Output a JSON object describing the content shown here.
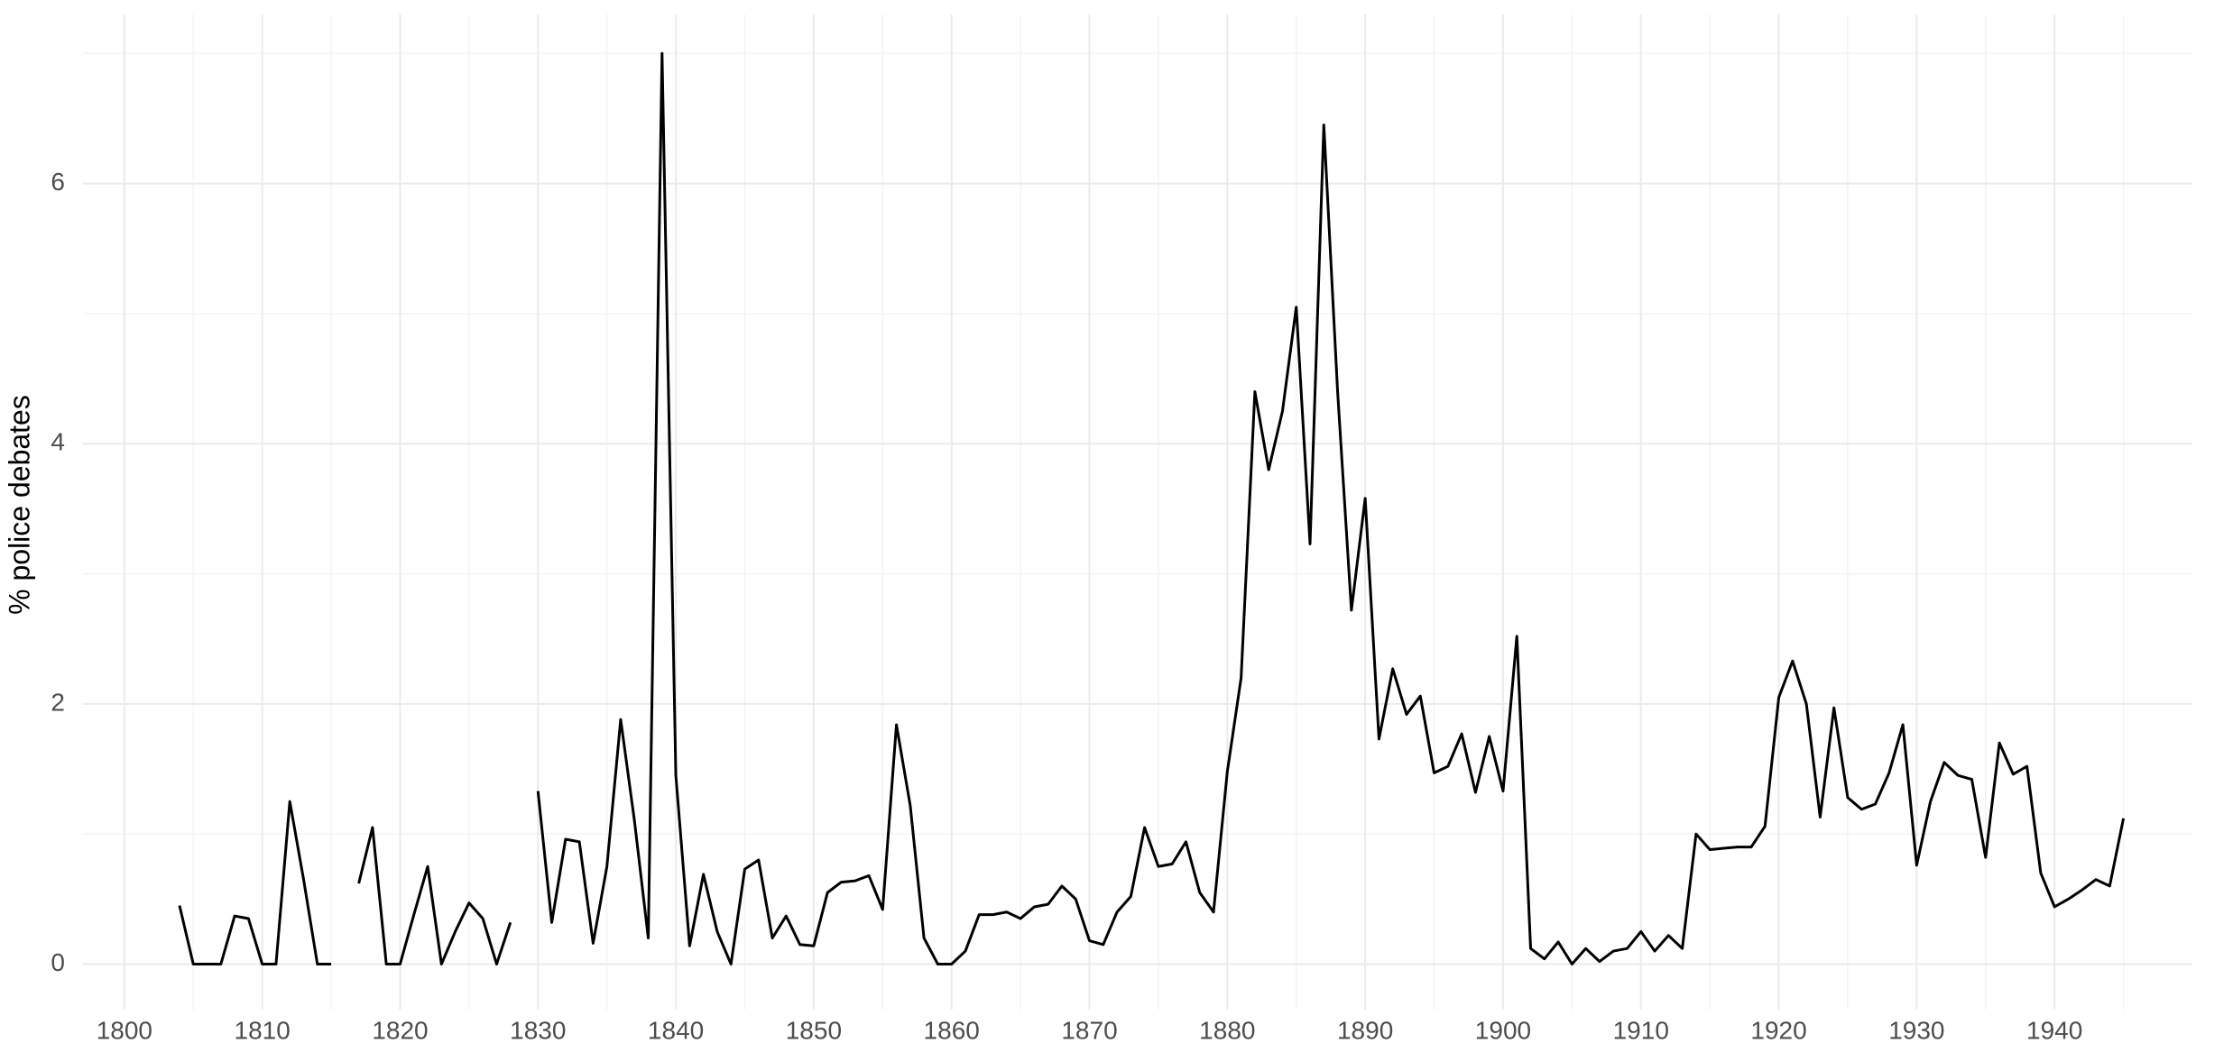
{
  "chart_data": {
    "type": "line",
    "y_label": "% police debates",
    "x": [
      1804,
      1805,
      1806,
      1807,
      1808,
      1809,
      1810,
      1811,
      1812,
      1813,
      1814,
      1815,
      1816,
      1817,
      1818,
      1819,
      1820,
      1821,
      1822,
      1823,
      1824,
      1825,
      1826,
      1827,
      1828,
      1829,
      1830,
      1831,
      1832,
      1833,
      1834,
      1835,
      1836,
      1837,
      1838,
      1839,
      1840,
      1841,
      1842,
      1843,
      1844,
      1845,
      1846,
      1847,
      1848,
      1849,
      1850,
      1851,
      1852,
      1853,
      1854,
      1855,
      1856,
      1857,
      1858,
      1859,
      1860,
      1861,
      1862,
      1863,
      1864,
      1865,
      1866,
      1867,
      1868,
      1869,
      1870,
      1871,
      1872,
      1873,
      1874,
      1875,
      1876,
      1877,
      1878,
      1879,
      1880,
      1881,
      1882,
      1883,
      1884,
      1885,
      1886,
      1887,
      1888,
      1889,
      1890,
      1891,
      1892,
      1893,
      1894,
      1895,
      1896,
      1897,
      1898,
      1899,
      1900,
      1901,
      1902,
      1903,
      1904,
      1905,
      1906,
      1907,
      1908,
      1909,
      1910,
      1911,
      1912,
      1913,
      1914,
      1915,
      1916,
      1917,
      1918,
      1919,
      1920,
      1921,
      1922,
      1923,
      1924,
      1925,
      1926,
      1927,
      1928,
      1929,
      1930,
      1931,
      1932,
      1933,
      1934,
      1935,
      1936,
      1937,
      1938,
      1939,
      1940,
      1941,
      1942,
      1943,
      1944,
      1945
    ],
    "series": [
      {
        "name": "police",
        "color": "#000000",
        "values": [
          0.45,
          0,
          0,
          0,
          0.37,
          0.35,
          0,
          0,
          1.25,
          0.65,
          0,
          0,
          null,
          0.62,
          1.05,
          0,
          0,
          0.38,
          0.75,
          0,
          0.25,
          0.47,
          0.35,
          0,
          0.32,
          null,
          1.33,
          0.32,
          0.96,
          0.94,
          0.16,
          0.75,
          1.88,
          1.1,
          0.2,
          7.0,
          1.45,
          0.14,
          0.69,
          0.25,
          0,
          0.73,
          0.8,
          0.2,
          0.37,
          0.15,
          0.14,
          0.55,
          0.63,
          0.64,
          0.68,
          0.42,
          1.84,
          1.22,
          0.2,
          0,
          0,
          0.1,
          0.38,
          0.38,
          0.4,
          0.35,
          0.44,
          0.46,
          0.6,
          0.5,
          0.18,
          0.15,
          0.4,
          0.52,
          1.05,
          0.75,
          0.77,
          0.94,
          0.55,
          0.4,
          1.48,
          2.2,
          4.4,
          3.8,
          4.25,
          5.05,
          3.23,
          6.45,
          4.4,
          2.72,
          3.58,
          1.73,
          2.27,
          1.92,
          2.06,
          1.47,
          1.52,
          1.77,
          1.32,
          1.75,
          1.33,
          2.52,
          0.12,
          0.04,
          0.17,
          0,
          0.12,
          0.02,
          0.1,
          0.12,
          0.25,
          0.1,
          0.22,
          0.12,
          1.0,
          0.88,
          0.89,
          0.9,
          0.9,
          1.06,
          2.05,
          2.33,
          2.0,
          1.13,
          1.97,
          1.28,
          1.19,
          1.23,
          1.47,
          1.84,
          0.76,
          1.25,
          1.55,
          1.45,
          1.42,
          0.82,
          1.7,
          1.46,
          1.52,
          0.7,
          0.44,
          0.5,
          0.57,
          0.65,
          0.6,
          1.12
        ]
      }
    ],
    "xlim": [
      1797,
      1950
    ],
    "xticks": [
      1800,
      1810,
      1820,
      1830,
      1840,
      1850,
      1860,
      1870,
      1880,
      1890,
      1900,
      1910,
      1920,
      1930,
      1940
    ],
    "ylim": [
      -0.35,
      7.3
    ],
    "yticks": [
      0,
      2,
      4,
      6
    ],
    "grid": true
  }
}
